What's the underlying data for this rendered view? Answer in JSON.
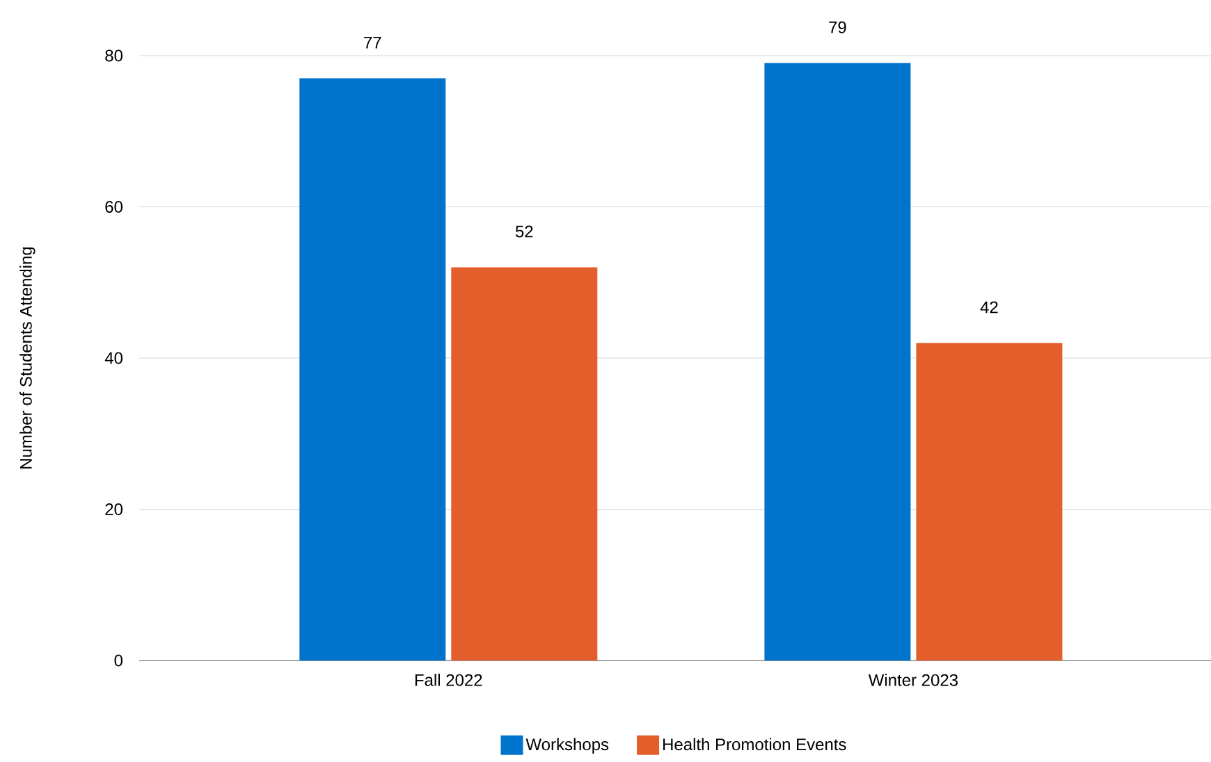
{
  "chart_data": {
    "type": "bar",
    "ylabel": "Number of Students Attending",
    "categories": [
      "Fall 2022",
      "Winter 2023"
    ],
    "series": [
      {
        "name": "Workshops",
        "color": "#0074cc",
        "values": [
          77,
          79
        ]
      },
      {
        "name": "Health Promotion Events",
        "color": "#e45e2c",
        "values": [
          52,
          42
        ]
      }
    ],
    "ylim": [
      0,
      80
    ],
    "yticks": [
      0,
      20,
      40,
      60,
      80
    ],
    "grid": "y",
    "legend": "bottom",
    "data_labels": true
  }
}
